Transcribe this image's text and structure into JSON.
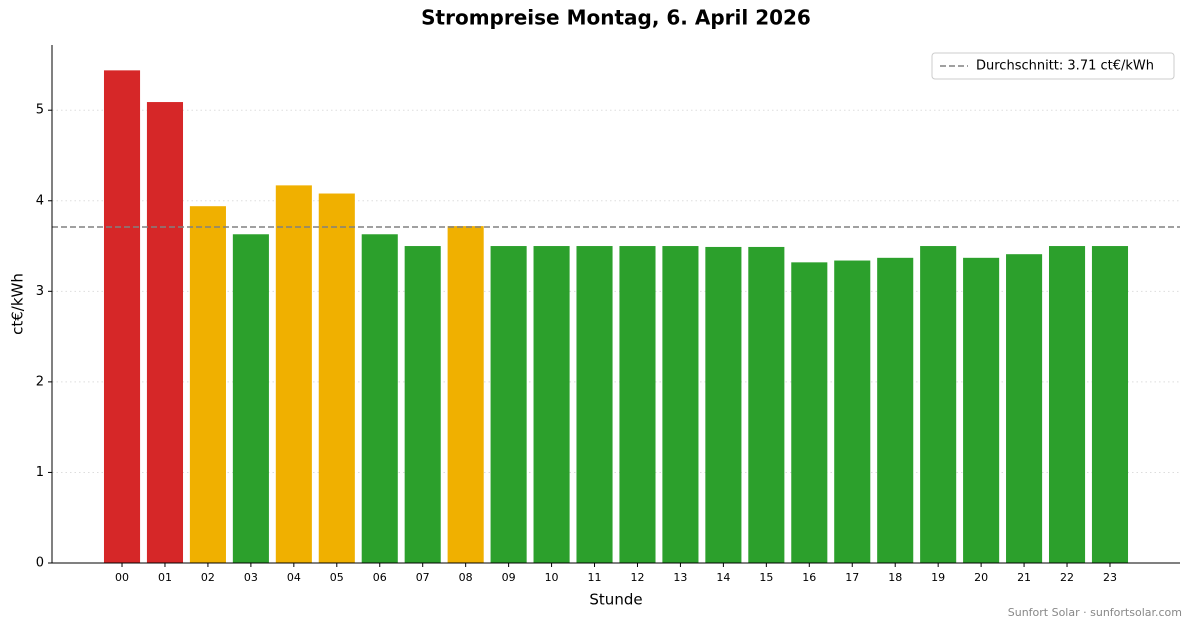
{
  "chart_data": {
    "type": "bar",
    "title": "Strompreise Montag, 6. April 2026",
    "x_label": "Stunde",
    "y_label": "ct€/kWh",
    "categories": [
      "00",
      "01",
      "02",
      "03",
      "04",
      "05",
      "06",
      "07",
      "08",
      "09",
      "10",
      "11",
      "12",
      "13",
      "14",
      "15",
      "16",
      "17",
      "18",
      "19",
      "20",
      "21",
      "22",
      "23"
    ],
    "values": [
      5.44,
      5.09,
      3.94,
      3.63,
      4.17,
      4.08,
      3.63,
      3.5,
      3.72,
      3.5,
      3.5,
      3.5,
      3.5,
      3.5,
      3.49,
      3.49,
      3.32,
      3.34,
      3.37,
      3.5,
      3.37,
      3.41,
      3.5,
      3.5
    ],
    "colors": [
      "#d62728",
      "#d62728",
      "#f0b000",
      "#2ca02c",
      "#f0b000",
      "#f0b000",
      "#2ca02c",
      "#2ca02c",
      "#f0b000",
      "#2ca02c",
      "#2ca02c",
      "#2ca02c",
      "#2ca02c",
      "#2ca02c",
      "#2ca02c",
      "#2ca02c",
      "#2ca02c",
      "#2ca02c",
      "#2ca02c",
      "#2ca02c",
      "#2ca02c",
      "#2ca02c",
      "#2ca02c",
      "#2ca02c"
    ],
    "ylim": [
      0,
      5.72
    ],
    "yticks": [
      0,
      1,
      2,
      3,
      4,
      5
    ],
    "grid": true,
    "average": {
      "value": 3.71,
      "label": "Durchschnitt: 3.71 ct€/kWh",
      "color": "#808080"
    },
    "legend_position": "upper right",
    "footer": "Sunfort Solar · sunfortsolar.com"
  }
}
